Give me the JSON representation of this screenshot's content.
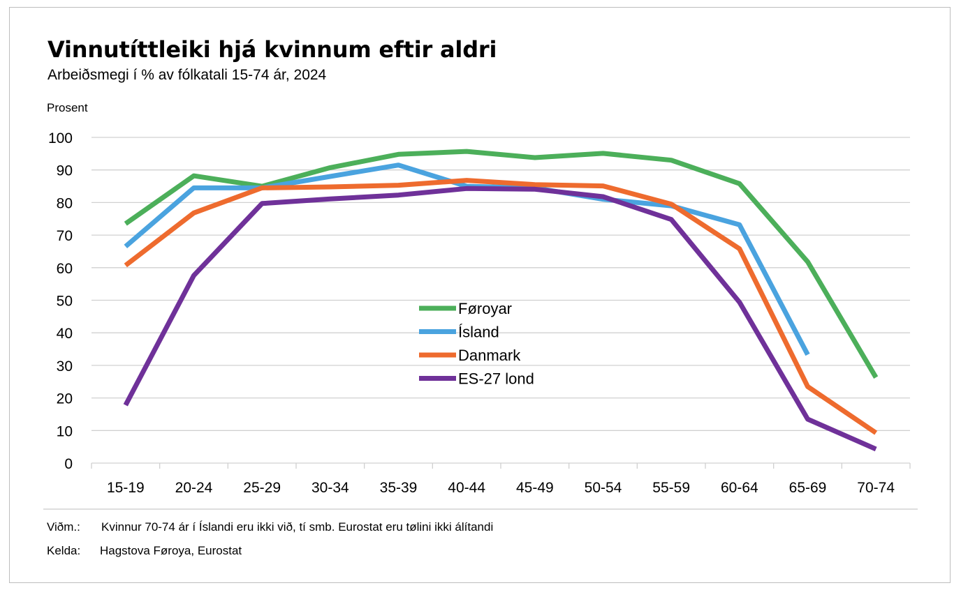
{
  "header": {
    "title": "Vinnutíttleiki hjá kvinnum eftir aldri",
    "subtitle": "Arbeiðsmegi í % av fólkatali 15-74 ár, 2024"
  },
  "chart_data": {
    "type": "line",
    "title": "Vinnutíttleiki hjá kvinnum eftir aldri",
    "subtitle": "Arbeiðsmegi í % av fólkatali 15-74 ár, 2024",
    "ylabel": "Prosent",
    "xlabel": "",
    "ylim": [
      0,
      100
    ],
    "yticks": [
      0,
      10,
      20,
      30,
      40,
      50,
      60,
      70,
      80,
      90,
      100
    ],
    "grid": true,
    "legend_position": "center",
    "categories": [
      "15-19",
      "20-24",
      "25-29",
      "30-34",
      "35-39",
      "40-44",
      "45-49",
      "50-54",
      "55-59",
      "60-64",
      "65-69",
      "70-74"
    ],
    "series": [
      {
        "name": "Føroyar",
        "color": "#4caf5a",
        "values": [
          73.5,
          88.2,
          85,
          90.7,
          94.8,
          95.7,
          93.8,
          95.1,
          93,
          85.8,
          61.8,
          26.3
        ]
      },
      {
        "name": "Ísland",
        "color": "#4aa3df",
        "values": [
          66.5,
          84.5,
          84.5,
          88,
          91.5,
          85,
          84.5,
          81,
          79,
          73.2,
          33.3,
          null
        ]
      },
      {
        "name": "Danmark",
        "color": "#ee6b2e",
        "values": [
          60.7,
          76.8,
          84.5,
          84.8,
          85.3,
          86.8,
          85.5,
          85.1,
          79.5,
          65.8,
          23.5,
          9.3
        ]
      },
      {
        "name": "ES-27 lond",
        "color": "#6f3199",
        "values": [
          17.8,
          57.6,
          79.7,
          81.1,
          82.3,
          84.3,
          84.1,
          81.8,
          74.8,
          49.4,
          13.5,
          4.3
        ]
      }
    ]
  },
  "footer": {
    "note_label": "Viðm.:",
    "note_text": "Kvinnur 70-74 ár í Íslandi eru ikki við, tí smb. Eurostat eru tølini ikki álítandi",
    "source_label": "Kelda:",
    "source_text": "Hagstova Føroya, Eurostat"
  }
}
